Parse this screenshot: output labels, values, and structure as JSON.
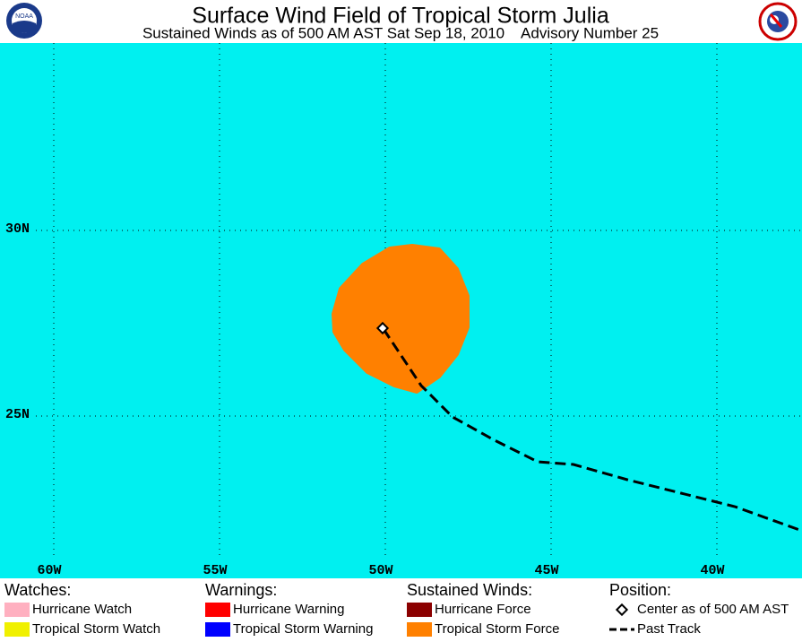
{
  "header": {
    "title": "Surface Wind Field of Tropical Storm Julia",
    "subtitle": "Sustained Winds as of 500 AM AST Sat Sep 18, 2010    Advisory Number 25"
  },
  "map": {
    "lon_labels": [
      "60W",
      "55W",
      "50W",
      "45W",
      "40W"
    ],
    "lat_labels": [
      "30N",
      "25N"
    ],
    "water_color": "#00f0f0"
  },
  "legend": [
    {
      "heading": "Watches:",
      "items": [
        {
          "label": "Hurricane Watch",
          "color": "#ffb0c0"
        },
        {
          "label": "Tropical Storm Watch",
          "color": "#f0f000"
        }
      ]
    },
    {
      "heading": "Warnings:",
      "items": [
        {
          "label": "Hurricane Warning",
          "color": "#ff0000"
        },
        {
          "label": "Tropical Storm Warning",
          "color": "#0000ff"
        }
      ]
    },
    {
      "heading": "Sustained Winds:",
      "items": [
        {
          "label": "Hurricane Force",
          "color": "#8b0000"
        },
        {
          "label": "Tropical Storm Force",
          "color": "#ff8000"
        }
      ]
    },
    {
      "heading": "Position:",
      "items": [
        {
          "label": "Center as of 500 AM AST"
        },
        {
          "label": "Past Track"
        }
      ]
    }
  ]
}
